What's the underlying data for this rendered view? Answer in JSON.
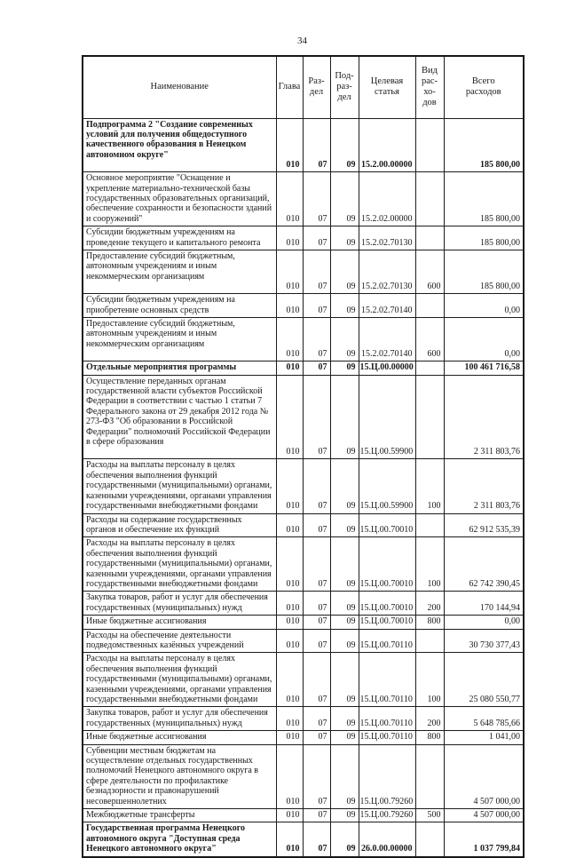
{
  "page": {
    "number": "34"
  },
  "table": {
    "headers": {
      "name": "Наименование",
      "glava": "Глава",
      "razdel": "Раз-\nдел",
      "podrazdel": "Под-\nраз-\nдел",
      "target": "Целевая\nстатья",
      "vid": "Вид\nрас-\nхо-\nдов",
      "total": "Всего\nрасходов"
    },
    "rows": [
      {
        "name": "Подпрограмма 2 \"Создание современных условий для получения общедоступного качественного образования в Ненецком автономном округе\"",
        "glava": "010",
        "razdel": "07",
        "podrazdel": "09",
        "target": "15.2.00.00000",
        "vid": "",
        "total": "185 800,00",
        "bold": true,
        "pad": true
      },
      {
        "name": "Основное мероприятие \"Оснащение и укрепление материально-технической базы государственных образовательных организаций, обеспечение сохранности и безопасности зданий и сооружений\"",
        "glava": "010",
        "razdel": "07",
        "podrazdel": "09",
        "target": "15.2.02.00000",
        "vid": "",
        "total": "185 800,00",
        "bold": false,
        "pad": false
      },
      {
        "name": "Субсидии бюджетным учреждениям на проведение текущего и капитального ремонта",
        "glava": "010",
        "razdel": "07",
        "podrazdel": "09",
        "target": "15.2.02.70130",
        "vid": "",
        "total": "185 800,00",
        "bold": false,
        "pad": false
      },
      {
        "name": "Предоставление субсидий бюджетным, автономным учреждениям и иным некоммерческим организациям",
        "glava": "010",
        "razdel": "07",
        "podrazdel": "09",
        "target": "15.2.02.70130",
        "vid": "600",
        "total": "185 800,00",
        "bold": false,
        "pad": true
      },
      {
        "name": "Субсидии бюджетным учреждениям на приобретение основных средств",
        "glava": "010",
        "razdel": "07",
        "podrazdel": "09",
        "target": "15.2.02.70140",
        "vid": "",
        "total": "0,00",
        "bold": false,
        "pad": false
      },
      {
        "name": "Предоставление субсидий бюджетным, автономным учреждениям и иным некоммерческим организациям",
        "glava": "010",
        "razdel": "07",
        "podrazdel": "09",
        "target": "15.2.02.70140",
        "vid": "600",
        "total": "0,00",
        "bold": false,
        "pad": true
      },
      {
        "name": "Отдельные мероприятия программы",
        "glava": "010",
        "razdel": "07",
        "podrazdel": "09",
        "target": "15.Ц.00.00000",
        "vid": "",
        "total": "100 461 716,58",
        "bold": true,
        "pad": false
      },
      {
        "name": "Осуществление переданных органам государственной власти субъектов Российской Федерации в соответствии с частью 1 статьи 7 Федерального закона от 29 декабря 2012 года № 273-ФЗ \"Об образовании в Российской Федерации\" полномочий Российской Федерации в сфере образования",
        "glava": "010",
        "razdel": "07",
        "podrazdel": "09",
        "target": "15.Ц.00.59900",
        "vid": "",
        "total": "2 311 803,76",
        "bold": false,
        "pad": true
      },
      {
        "name": "Расходы на выплаты персоналу в целях обеспечения выполнения функций государственными (муниципальными) органами, казенными учреждениями, органами управления государственными внебюджетными фондами",
        "glava": "010",
        "razdel": "07",
        "podrazdel": "09",
        "target": "15.Ц.00.59900",
        "vid": "100",
        "total": "2 311 803,76",
        "bold": false,
        "pad": false
      },
      {
        "name": "Расходы на содержание государственных органов и обеспечение их функций",
        "glava": "010",
        "razdel": "07",
        "podrazdel": "09",
        "target": "15.Ц.00.70010",
        "vid": "",
        "total": "62 912 535,39",
        "bold": false,
        "pad": false
      },
      {
        "name": "Расходы на выплаты персоналу в целях обеспечения выполнения функций государственными (муниципальными) органами, казенными учреждениями, органами управления государственными внебюджетными фондами",
        "glava": "010",
        "razdel": "07",
        "podrazdel": "09",
        "target": "15.Ц.00.70010",
        "vid": "100",
        "total": "62 742 390,45",
        "bold": false,
        "pad": false
      },
      {
        "name": "Закупка товаров, работ и услуг для обеспечения государственных (муниципальных) нужд",
        "glava": "010",
        "razdel": "07",
        "podrazdel": "09",
        "target": "15.Ц.00.70010",
        "vid": "200",
        "total": "170 144,94",
        "bold": false,
        "pad": false
      },
      {
        "name": "Иные бюджетные ассигнования",
        "glava": "010",
        "razdel": "07",
        "podrazdel": "09",
        "target": "15.Ц.00.70010",
        "vid": "800",
        "total": "0,00",
        "bold": false,
        "pad": false
      },
      {
        "name": "Расходы на обеспечение деятельности подведомственных казённых учреждений",
        "glava": "010",
        "razdel": "07",
        "podrazdel": "09",
        "target": "15.Ц.00.70110",
        "vid": "",
        "total": "30 730 377,43",
        "bold": false,
        "pad": false
      },
      {
        "name": "Расходы на выплаты персоналу в целях обеспечения выполнения функций государственными (муниципальными) органами, казенными учреждениями, органами управления государственными внебюджетными фондами",
        "glava": "010",
        "razdel": "07",
        "podrazdel": "09",
        "target": "15.Ц.00.70110",
        "vid": "100",
        "total": "25 080 550,77",
        "bold": false,
        "pad": false
      },
      {
        "name": "Закупка товаров, работ и услуг для обеспечения государственных (муниципальных) нужд",
        "glava": "010",
        "razdel": "07",
        "podrazdel": "09",
        "target": "15.Ц.00.70110",
        "vid": "200",
        "total": "5 648 785,66",
        "bold": false,
        "pad": false
      },
      {
        "name": "Иные бюджетные ассигнования",
        "glava": "010",
        "razdel": "07",
        "podrazdel": "09",
        "target": "15.Ц.00.70110",
        "vid": "800",
        "total": "1 041,00",
        "bold": false,
        "pad": false
      },
      {
        "name": "Субвенции местным бюджетам на осуществление отдельных государственных полномочий Ненецкого автономного округа в сфере деятельности по профилактике безнадзорности и правонарушений несовершеннолетних",
        "glava": "010",
        "razdel": "07",
        "podrazdel": "09",
        "target": "15.Ц.00.79260",
        "vid": "",
        "total": "4 507 000,00",
        "bold": false,
        "pad": false
      },
      {
        "name": "Межбюджетные трансферты",
        "glava": "010",
        "razdel": "07",
        "podrazdel": "09",
        "target": "15.Ц.00.79260",
        "vid": "500",
        "total": "4 507 000,00",
        "bold": false,
        "pad": false
      },
      {
        "name": "Государственная программа Ненецкого автономного округа \"Доступная среда Ненецкого автономного округа\"",
        "glava": "010",
        "razdel": "07",
        "podrazdel": "09",
        "target": "26.0.00.00000",
        "vid": "",
        "total": "1 037 799,84",
        "bold": true,
        "pad": false
      }
    ]
  }
}
